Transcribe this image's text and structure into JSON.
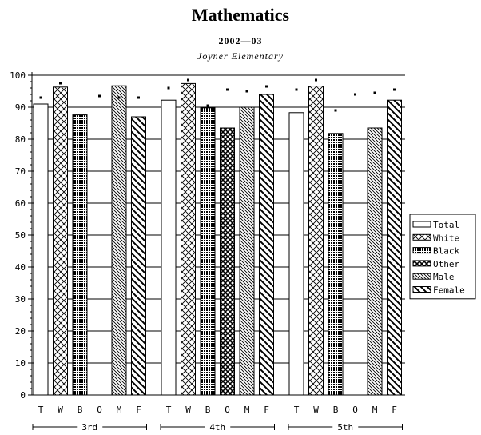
{
  "title": "Mathematics",
  "subtitle": "2002—03",
  "school": "Joyner Elementary",
  "chart_data": {
    "type": "bar",
    "groups": [
      "3rd",
      "4th",
      "5th"
    ],
    "categories": [
      "T",
      "W",
      "B",
      "O",
      "M",
      "F"
    ],
    "series": [
      {
        "name": "3rd",
        "values": [
          91,
          96.3,
          87.6,
          null,
          96.7,
          87
        ]
      },
      {
        "name": "4th",
        "values": [
          92.2,
          97.4,
          89.8,
          83.5,
          90,
          94
        ]
      },
      {
        "name": "5th",
        "values": [
          88.3,
          96.6,
          81.8,
          null,
          83.5,
          92.2
        ]
      }
    ],
    "markers": [
      [
        93,
        97.5,
        null,
        93.5,
        93,
        93
      ],
      [
        96,
        98.5,
        90.5,
        95.5,
        95,
        96.5
      ],
      [
        95.5,
        98.5,
        89,
        94,
        94.5,
        95.5
      ]
    ],
    "ylim": [
      0,
      100
    ],
    "yticks": [
      0,
      10,
      20,
      30,
      40,
      50,
      60,
      70,
      80,
      90,
      100
    ],
    "legend": [
      "Total",
      "White",
      "Black",
      "Other",
      "Male",
      "Female"
    ],
    "legend_position": "right",
    "grid": true
  }
}
